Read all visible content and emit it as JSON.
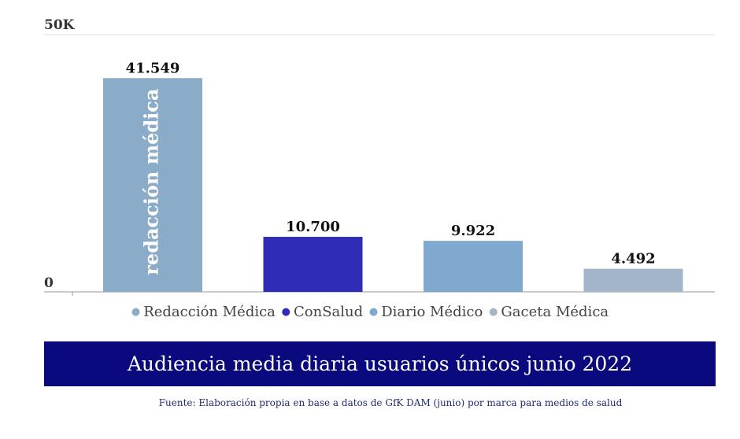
{
  "chart_data": {
    "type": "bar",
    "categories": [
      "Redacción Médica",
      "ConSalud",
      "Diario Médico",
      "Gaceta Médica"
    ],
    "values": [
      41549,
      10700,
      9922,
      4492
    ],
    "value_labels": [
      "41.549",
      "10.700",
      "9.922",
      "4.492"
    ],
    "ylim": [
      0,
      50000
    ],
    "y_ticks": [
      "0",
      "50K"
    ],
    "bar_text": "redacción médica",
    "legend": [
      {
        "label": "Redacción Médica",
        "color": "#8aacc8"
      },
      {
        "label": "ConSalud",
        "color": "#2f2cb8"
      },
      {
        "label": "Diario Médico",
        "color": "#7fa9cf"
      },
      {
        "label": "Gaceta Médica",
        "color": "#a3b6c9"
      }
    ],
    "title": "Audiencia media diaria usuarios únicos junio 2022",
    "source": "Fuente: Elaboración propia en base a datos de GfK DAM (junio) por marca para medios de salud"
  },
  "colors": {
    "bars": [
      "#8aacc8",
      "#2f2cb8",
      "#7fa9cf",
      "#a3b6c9"
    ],
    "banner": "#0a0a7e",
    "axis": "#999999",
    "grid": "#dddddd"
  }
}
